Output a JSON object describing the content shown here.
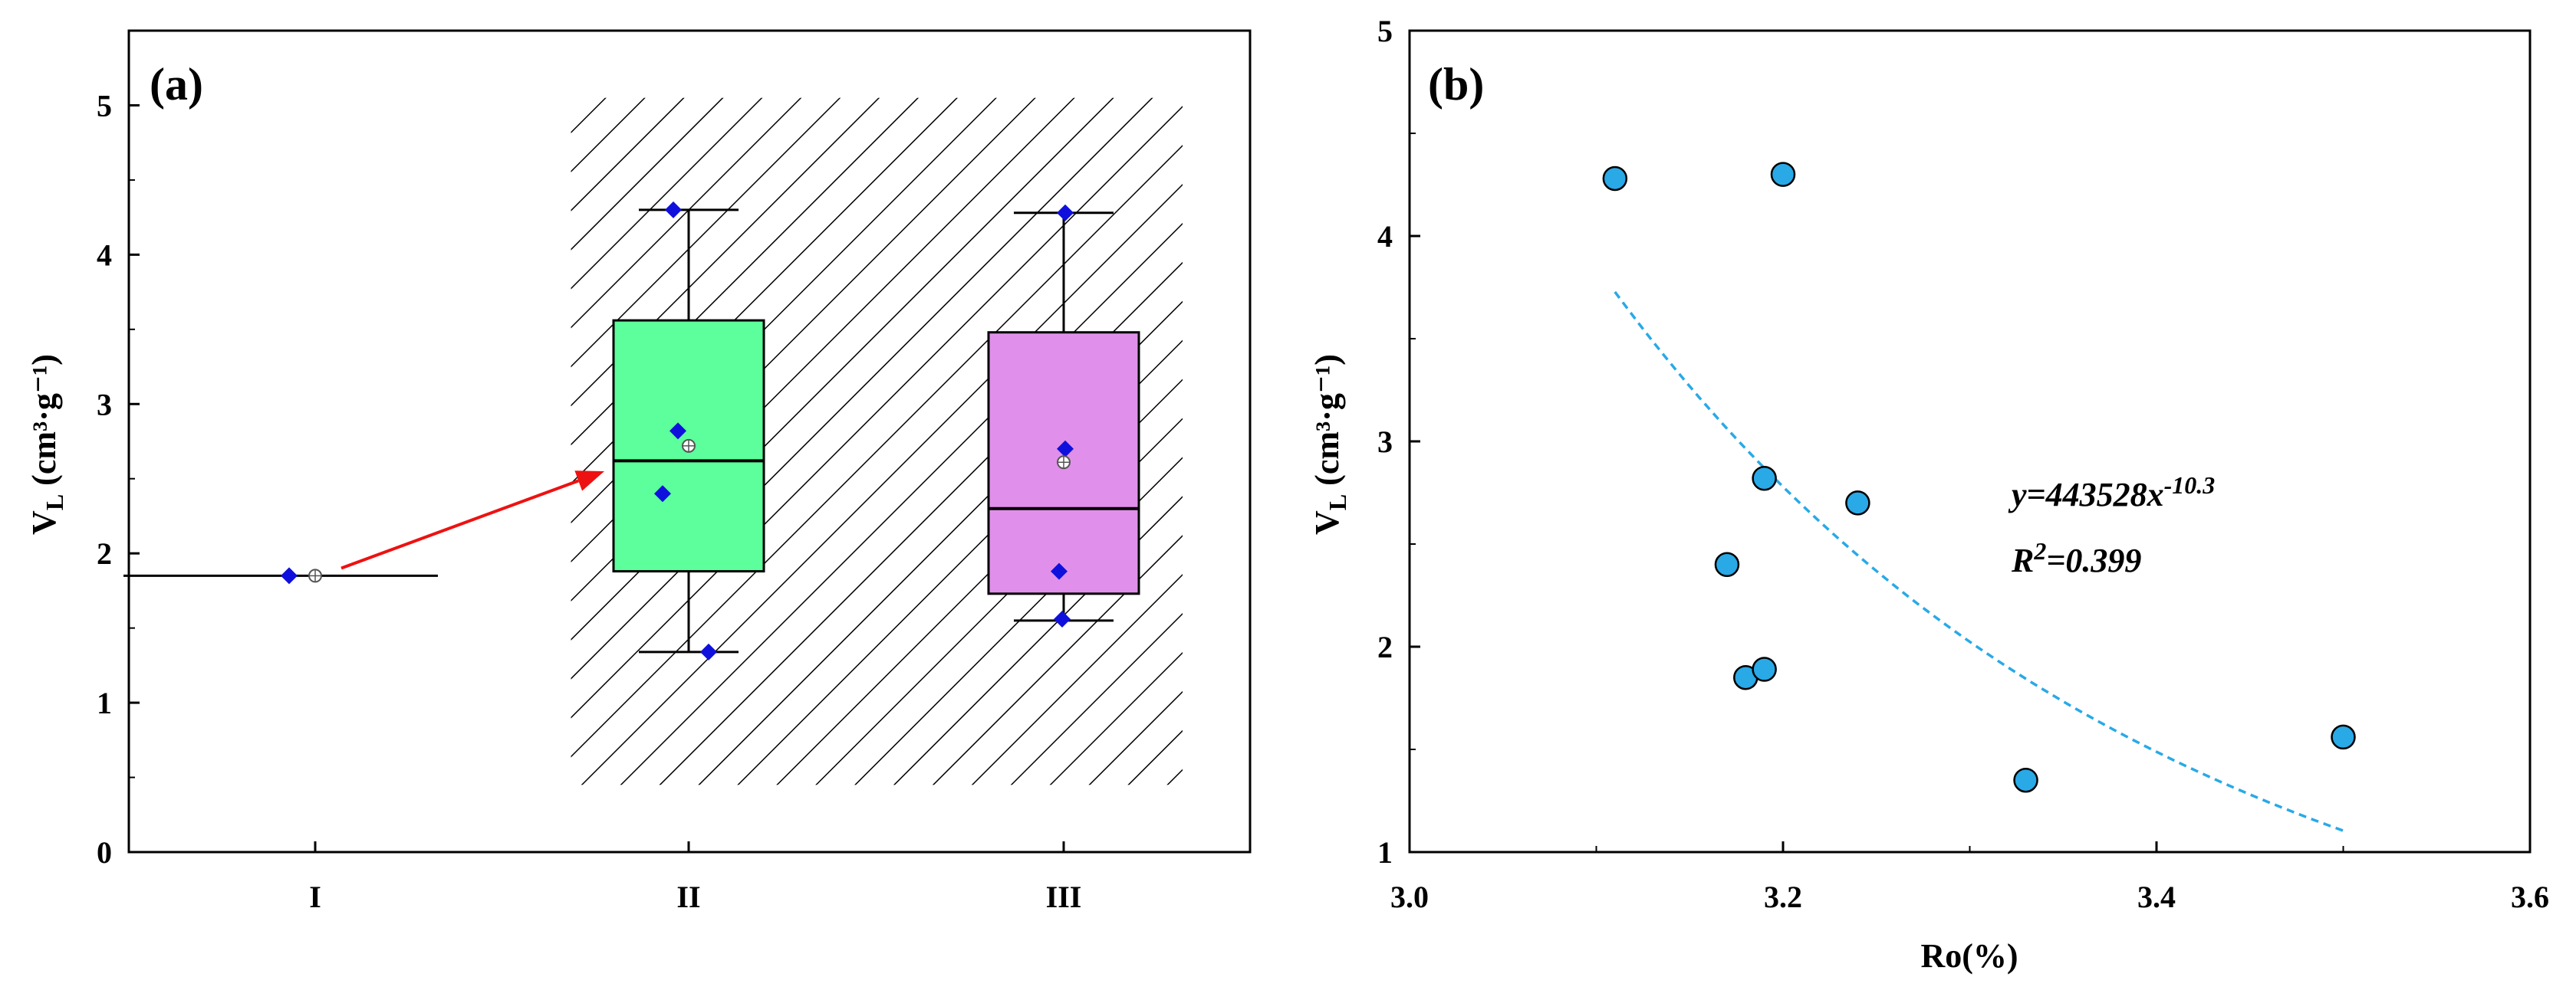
{
  "chart_data": [
    {
      "panel": "(a)",
      "type": "box",
      "ylabel_main": "V",
      "ylabel_sub": "L",
      "ylabel_rest": "(cm³·g⁻¹)",
      "ylim": [
        0,
        5.5
      ],
      "yticks": [
        "0",
        "1",
        "2",
        "3",
        "4",
        "5"
      ],
      "categories": [
        "I",
        "II",
        "III"
      ],
      "hatched_region": {
        "x_from": "I–II midpoint",
        "x_to": "III right edge",
        "y": [
          0.45,
          5.05
        ]
      },
      "colors": {
        "I": "#000000",
        "II": "#5cff9b",
        "III": "#e090ea",
        "point": "#1010dd",
        "arrow": "#ee1111"
      },
      "boxes": [
        {
          "name": "I",
          "min": 1.85,
          "q1": 1.85,
          "median": 1.85,
          "q3": 1.85,
          "max": 1.85,
          "mean": 1.85,
          "points": [
            1.85
          ]
        },
        {
          "name": "II",
          "min": 1.34,
          "q1": 1.88,
          "median": 2.62,
          "q3": 3.56,
          "max": 4.3,
          "mean": 2.72,
          "points": [
            2.82,
            2.4,
            1.34,
            4.3
          ]
        },
        {
          "name": "III",
          "min": 1.55,
          "q1": 1.73,
          "median": 2.3,
          "q3": 3.48,
          "max": 4.28,
          "mean": 2.61,
          "points": [
            4.28,
            2.7,
            1.88,
            1.56
          ]
        }
      ],
      "arrow": {
        "from": "I",
        "to": "II"
      }
    },
    {
      "panel": "(b)",
      "type": "scatter",
      "xlabel": "Ro(%)",
      "ylabel_main": "V",
      "ylabel_sub": "L",
      "ylabel_rest": "(cm³·g⁻¹)",
      "xlim": [
        3.0,
        3.6
      ],
      "ylim": [
        1,
        5
      ],
      "xticks": [
        "3.0",
        "3.2",
        "3.4",
        "3.6"
      ],
      "yticks": [
        "1",
        "2",
        "3",
        "4",
        "5"
      ],
      "points": [
        {
          "x": 3.11,
          "y": 4.28
        },
        {
          "x": 3.2,
          "y": 4.3
        },
        {
          "x": 3.19,
          "y": 2.82
        },
        {
          "x": 3.24,
          "y": 2.7
        },
        {
          "x": 3.17,
          "y": 2.4
        },
        {
          "x": 3.18,
          "y": 1.85
        },
        {
          "x": 3.19,
          "y": 1.89
        },
        {
          "x": 3.33,
          "y": 1.35
        },
        {
          "x": 3.5,
          "y": 1.56
        }
      ],
      "point_color": "#29a9e6",
      "fit": {
        "a": 443528,
        "b": -10.3,
        "x_range": [
          3.11,
          3.5
        ],
        "color": "#29a9e6"
      },
      "equation_prefix": "y=443528x",
      "equation_exp": "-10.3",
      "r2_prefix": "R",
      "r2_exp": "2",
      "r2_rest": "=0.399"
    }
  ]
}
